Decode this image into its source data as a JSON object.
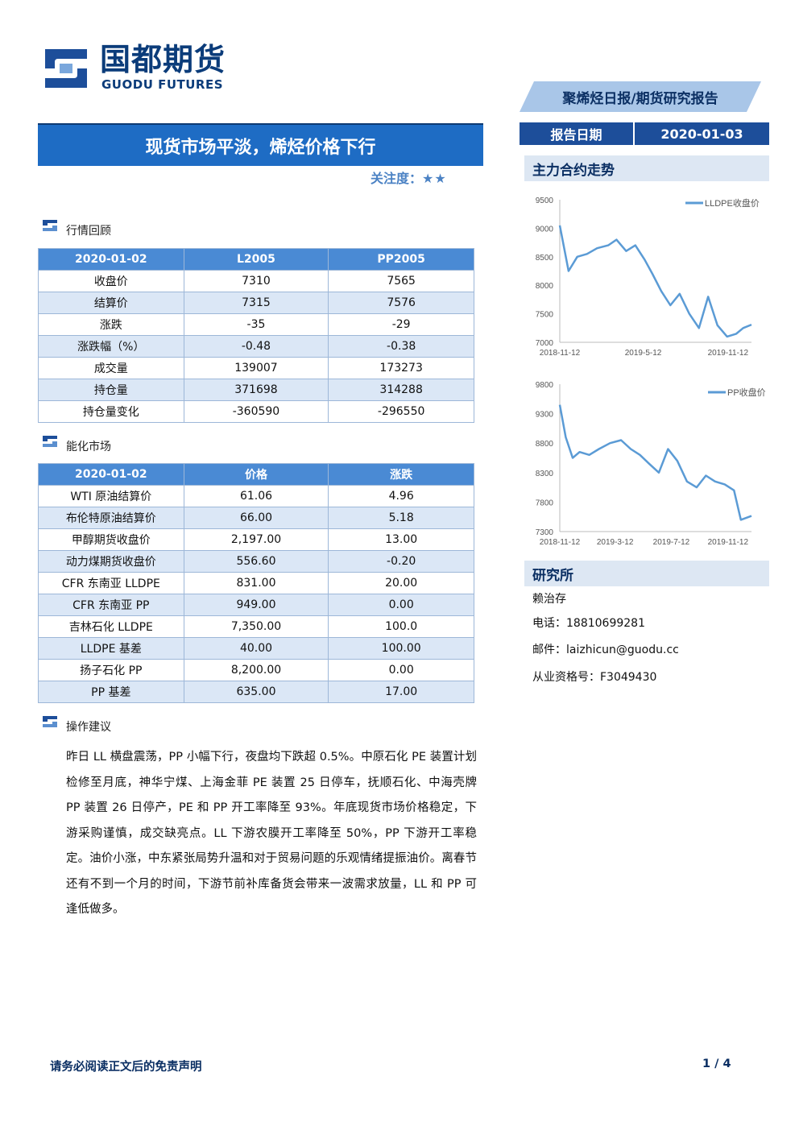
{
  "header": {
    "logo_cn": "国都期货",
    "logo_en": "GUODU FUTURES",
    "report_tag": "聚烯烃日报/期货研究报告",
    "date_label": "报告日期",
    "date_value": "2020-01-03"
  },
  "title": "现货市场平淡，烯烃价格下行",
  "focus": {
    "label": "关注度：",
    "stars": "★★"
  },
  "sections": {
    "market_review": "行情回顾",
    "energy_market": "能化市场",
    "suggestion": "操作建议"
  },
  "table1": {
    "headers": [
      "2020-01-02",
      "L2005",
      "PP2005"
    ],
    "rows": [
      [
        "收盘价",
        "7310",
        "7565"
      ],
      [
        "结算价",
        "7315",
        "7576"
      ],
      [
        "涨跌",
        "-35",
        "-29"
      ],
      [
        "涨跌幅（%）",
        "-0.48",
        "-0.38"
      ],
      [
        "成交量",
        "139007",
        "173273"
      ],
      [
        "持仓量",
        "371698",
        "314288"
      ],
      [
        "持仓量变化",
        "-360590",
        "-296550"
      ]
    ]
  },
  "table2": {
    "headers": [
      "2020-01-02",
      "价格",
      "涨跌"
    ],
    "rows": [
      [
        "WTI 原油结算价",
        "61.06",
        "4.96"
      ],
      [
        "布伦特原油结算价",
        "66.00",
        "5.18"
      ],
      [
        "甲醇期货收盘价",
        "2,197.00",
        "13.00"
      ],
      [
        "动力煤期货收盘价",
        "556.60",
        "-0.20"
      ],
      [
        "CFR 东南亚 LLDPE",
        "831.00",
        "20.00"
      ],
      [
        "CFR 东南亚 PP",
        "949.00",
        "0.00"
      ],
      [
        "吉林石化 LLDPE",
        "7,350.00",
        "100.0"
      ],
      [
        "LLDPE 基差",
        "40.00",
        "100.00"
      ],
      [
        "扬子石化 PP",
        "8,200.00",
        "0.00"
      ],
      [
        "PP 基差",
        "635.00",
        "17.00"
      ]
    ]
  },
  "suggestion_text": "昨日 LL 横盘震荡，PP 小幅下行，夜盘均下跌超 0.5%。中原石化 PE 装置计划检修至月底，神华宁煤、上海金菲 PE 装置 25 日停车，抚顺石化、中海壳牌 PP 装置 26 日停产，PE 和 PP 开工率降至 93%。年底现货市场价格稳定，下游采购谨慎，成交缺亮点。LL 下游农膜开工率降至 50%，PP 下游开工率稳定。油价小涨，中东紧张局势升温和对于贸易问题的乐观情绪提振油价。离春节还有不到一个月的时间，下游节前补库备货会带来一波需求放量，LL 和 PP 可逢低做多。",
  "side": {
    "trend_title": "主力合约走势",
    "research_title": "研究所",
    "analyst": "赖治存",
    "phone": "电话：18810699281",
    "email": "邮件：laizhicun@guodu.cc",
    "license": "从业资格号：F3049430"
  },
  "chart_data": [
    {
      "type": "line",
      "series": [
        {
          "name": "LLDPE收盘价"
        }
      ],
      "x_ticks": [
        "2018-11-12",
        "2019-5-12",
        "2019-11-12"
      ],
      "y_ticks": [
        7000,
        7500,
        8000,
        8500,
        9000,
        9500
      ],
      "ylim": [
        7000,
        9500
      ],
      "x": [
        "2018-11-12",
        "2018-12-01",
        "2018-12-20",
        "2019-01-10",
        "2019-02-01",
        "2019-02-25",
        "2019-03-15",
        "2019-04-05",
        "2019-04-25",
        "2019-05-15",
        "2019-06-01",
        "2019-06-20",
        "2019-07-10",
        "2019-07-30",
        "2019-08-20",
        "2019-09-10",
        "2019-09-30",
        "2019-10-20",
        "2019-11-10",
        "2019-11-30",
        "2019-12-15",
        "2020-01-02"
      ],
      "values": [
        9050,
        8250,
        8500,
        8550,
        8650,
        8700,
        8800,
        8600,
        8700,
        8450,
        8200,
        7900,
        7650,
        7850,
        7500,
        7250,
        7800,
        7300,
        7100,
        7150,
        7250,
        7310
      ],
      "legend_position": "top-right",
      "color": "#5b9bd5"
    },
    {
      "type": "line",
      "series": [
        {
          "name": "PP收盘价"
        }
      ],
      "x_ticks": [
        "2018-11-12",
        "2019-3-12",
        "2019-7-12",
        "2019-11-12"
      ],
      "y_ticks": [
        7300,
        7800,
        8300,
        8800,
        9300,
        9800
      ],
      "ylim": [
        7300,
        9800
      ],
      "x": [
        "2018-11-12",
        "2018-11-25",
        "2018-12-10",
        "2018-12-25",
        "2019-01-15",
        "2019-02-05",
        "2019-03-01",
        "2019-03-25",
        "2019-04-15",
        "2019-05-05",
        "2019-05-25",
        "2019-06-15",
        "2019-07-05",
        "2019-07-25",
        "2019-08-15",
        "2019-09-05",
        "2019-09-25",
        "2019-10-15",
        "2019-11-05",
        "2019-11-25",
        "2019-12-10",
        "2020-01-02"
      ],
      "values": [
        9450,
        8900,
        8550,
        8650,
        8600,
        8700,
        8800,
        8850,
        8700,
        8600,
        8450,
        8300,
        8700,
        8500,
        8150,
        8050,
        8250,
        8150,
        8100,
        8000,
        7500,
        7565
      ],
      "legend_position": "top-right",
      "color": "#5b9bd5"
    }
  ],
  "footer": {
    "disclaimer": "请务必阅读正文后的免责声明",
    "page": "1 / 4"
  }
}
